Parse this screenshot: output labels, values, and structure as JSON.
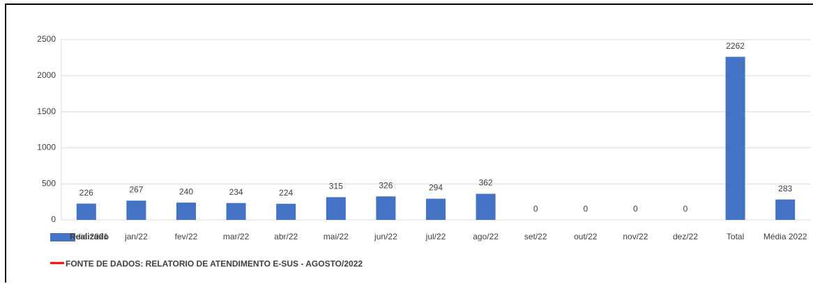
{
  "chart_data": {
    "type": "bar",
    "categories": [
      "Média 2021",
      "jan/22",
      "fev/22",
      "mar/22",
      "abr/22",
      "mai/22",
      "jun/22",
      "jul/22",
      "ago/22",
      "set/22",
      "out/22",
      "nov/22",
      "dez/22",
      "Total",
      "Média 2022"
    ],
    "series": [
      {
        "name": "Realizado",
        "color": "#4472c4",
        "values": [
          226,
          267,
          240,
          234,
          224,
          315,
          326,
          294,
          362,
          0,
          0,
          0,
          0,
          2262,
          283
        ]
      }
    ],
    "note": {
      "text": "FONTE DE DADOS: RELATORIO DE ATENDIMENTO E-SUS - AGOSTO/2022",
      "color": "#ff0000"
    },
    "ylim": [
      0,
      2500
    ],
    "yticks": [
      0,
      500,
      1000,
      1500,
      2000,
      2500
    ],
    "grid": true
  }
}
